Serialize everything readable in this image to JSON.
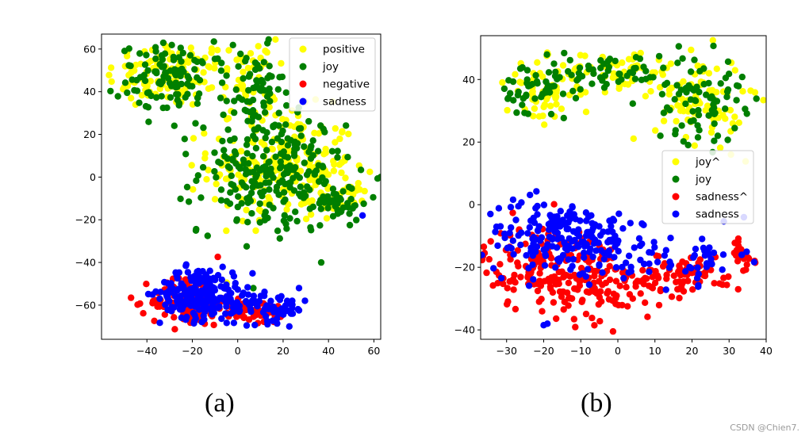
{
  "chart_data": [
    {
      "type": "scatter",
      "panel_label": "(a)",
      "xlim": [
        -60,
        63
      ],
      "ylim": [
        -76,
        67
      ],
      "xticks": [
        -40,
        -20,
        0,
        20,
        40,
        60
      ],
      "yticks": [
        -60,
        -40,
        -20,
        0,
        20,
        40,
        60
      ],
      "xtick_labels": [
        "−40",
        "−20",
        "0",
        "20",
        "40",
        "60"
      ],
      "ytick_labels": [
        "−60",
        "−40",
        "−20",
        "0",
        "20",
        "40",
        "60"
      ],
      "legend_position": "top-right",
      "grid": false,
      "series": [
        {
          "name": "positive",
          "color": "#ffff00",
          "clusters": [
            {
              "cx": -30,
              "cy": 48,
              "sx": 14,
              "sy": 8,
              "n": 120
            },
            {
              "cx": 20,
              "cy": 5,
              "sx": 16,
              "sy": 13,
              "n": 220
            },
            {
              "cx": 5,
              "cy": 45,
              "sx": 6,
              "sy": 10,
              "n": 50
            },
            {
              "cx": 45,
              "cy": -10,
              "sx": 7,
              "sy": 4,
              "n": 40
            }
          ]
        },
        {
          "name": "joy",
          "color": "#007f00",
          "clusters": [
            {
              "cx": -28,
              "cy": 46,
              "sx": 12,
              "sy": 8,
              "n": 110
            },
            {
              "cx": 15,
              "cy": 2,
              "sx": 16,
              "sy": 14,
              "n": 240
            },
            {
              "cx": 8,
              "cy": 40,
              "sx": 6,
              "sy": 10,
              "n": 60
            },
            {
              "cx": 42,
              "cy": -12,
              "sx": 8,
              "sy": 4,
              "n": 40
            }
          ]
        },
        {
          "name": "negative",
          "color": "#ff0000",
          "clusters": [
            {
              "cx": -22,
              "cy": -58,
              "sx": 8,
              "sy": 6,
              "n": 110
            },
            {
              "cx": 5,
              "cy": -63,
              "sx": 10,
              "sy": 3,
              "n": 60
            }
          ]
        },
        {
          "name": "sadness",
          "color": "#0000ff",
          "clusters": [
            {
              "cx": -18,
              "cy": -54,
              "sx": 8,
              "sy": 6,
              "n": 180
            },
            {
              "cx": 0,
              "cy": -58,
              "sx": 6,
              "sy": 5,
              "n": 60
            },
            {
              "cx": 18,
              "cy": -62,
              "sx": 6,
              "sy": 3,
              "n": 40
            }
          ]
        }
      ],
      "extra_points": [
        {
          "series": "sadness",
          "x": 55,
          "y": -18
        },
        {
          "series": "sadness",
          "x": 27,
          "y": -52
        },
        {
          "series": "sadness",
          "x": 24,
          "y": -58
        }
      ]
    },
    {
      "type": "scatter",
      "panel_label": "(b)",
      "xlim": [
        -37,
        40
      ],
      "ylim": [
        -43,
        54
      ],
      "xticks": [
        -30,
        -20,
        -10,
        0,
        10,
        20,
        30,
        40
      ],
      "yticks": [
        -40,
        -20,
        0,
        20,
        40
      ],
      "xtick_labels": [
        "−30",
        "−20",
        "−10",
        "0",
        "10",
        "20",
        "30",
        "40"
      ],
      "ytick_labels": [
        "−40",
        "−20",
        "0",
        "20",
        "40"
      ],
      "legend_position": "center-right",
      "grid": false,
      "series": [
        {
          "name": "joy^",
          "color": "#ffff00",
          "clusters": [
            {
              "cx": -20,
              "cy": 36,
              "sx": 5,
              "sy": 5,
              "n": 60
            },
            {
              "cx": 0,
              "cy": 43,
              "sx": 8,
              "sy": 3,
              "n": 60
            },
            {
              "cx": 22,
              "cy": 34,
              "sx": 6,
              "sy": 7,
              "n": 90
            }
          ]
        },
        {
          "name": "joy",
          "color": "#007f00",
          "clusters": [
            {
              "cx": -22,
              "cy": 36,
              "sx": 5,
              "sy": 5,
              "n": 50
            },
            {
              "cx": -2,
              "cy": 42,
              "sx": 8,
              "sy": 3,
              "n": 50
            },
            {
              "cx": 22,
              "cy": 34,
              "sx": 6,
              "sy": 7,
              "n": 80
            }
          ]
        },
        {
          "name": "sadness^",
          "color": "#ff0000",
          "clusters": [
            {
              "cx": -18,
              "cy": -20,
              "sx": 9,
              "sy": 7,
              "n": 170
            },
            {
              "cx": -2,
              "cy": -26,
              "sx": 8,
              "sy": 5,
              "n": 100
            },
            {
              "cx": 20,
              "cy": -22,
              "sx": 7,
              "sy": 3,
              "n": 60
            },
            {
              "cx": 33,
              "cy": -16,
              "sx": 2,
              "sy": 3,
              "n": 20
            }
          ]
        },
        {
          "name": "sadness",
          "color": "#0000ff",
          "clusters": [
            {
              "cx": -18,
              "cy": -10,
              "sx": 9,
              "sy": 6,
              "n": 150
            },
            {
              "cx": -3,
              "cy": -12,
              "sx": 6,
              "sy": 5,
              "n": 60
            },
            {
              "cx": 18,
              "cy": -17,
              "sx": 8,
              "sy": 4,
              "n": 50
            }
          ]
        }
      ],
      "extra_points": [
        {
          "series": "sadness",
          "x": -19,
          "y": -38
        },
        {
          "series": "sadness",
          "x": -20,
          "y": -38.5
        },
        {
          "series": "joy^",
          "x": 30.5,
          "y": 16
        },
        {
          "series": "sadness",
          "x": 34,
          "y": -4
        }
      ]
    }
  ],
  "captions": [
    "(a)",
    "(b)"
  ],
  "watermark": "CSDN @Chien7."
}
